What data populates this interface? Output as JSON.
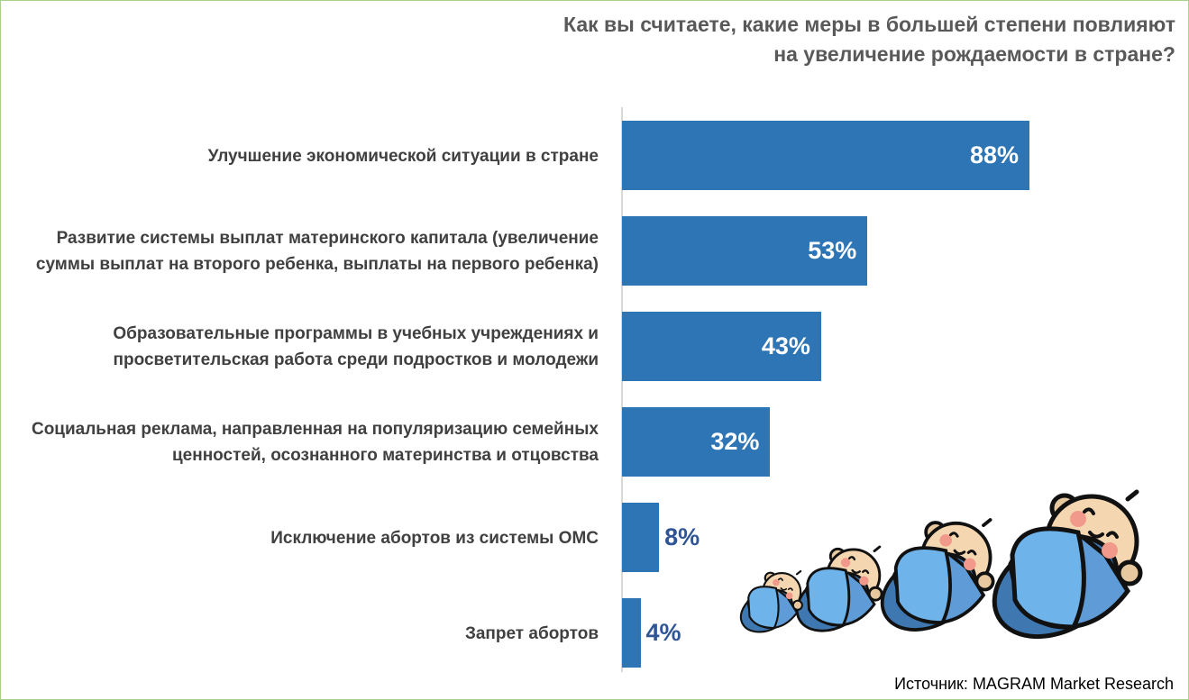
{
  "chart_data": {
    "type": "bar",
    "orientation": "horizontal",
    "title": "Как вы считаете, какие меры в большей степени повлияют на увеличение рождаемости в стране?",
    "title_lines": [
      "Как вы считаете, какие меры в большей степени повлияют",
      "на увеличение рождаемости в стране?"
    ],
    "categories": [
      "Улучшение экономической ситуации в стране",
      "Развитие системы выплат материнского капитала (увеличение суммы выплат на второго ребенка, выплаты на первого ребенка)",
      "Образовательные программы в учебных учреждениях и просветительская работа среди подростков и молодежи",
      "Социальная реклама, направленная на популяризацию семейных ценностей, осознанного материнства и отцовства",
      "Исключение абортов из системы ОМС",
      "Запрет абортов"
    ],
    "values": [
      88,
      53,
      43,
      32,
      8,
      4
    ],
    "value_labels": [
      "88%",
      "53%",
      "43%",
      "32%",
      "8%",
      "4%"
    ],
    "unit": "%",
    "xlim": [
      0,
      100
    ],
    "grid": false,
    "bar_color": "#2e75b6"
  },
  "source": "Источник: MAGRAM Market Research"
}
